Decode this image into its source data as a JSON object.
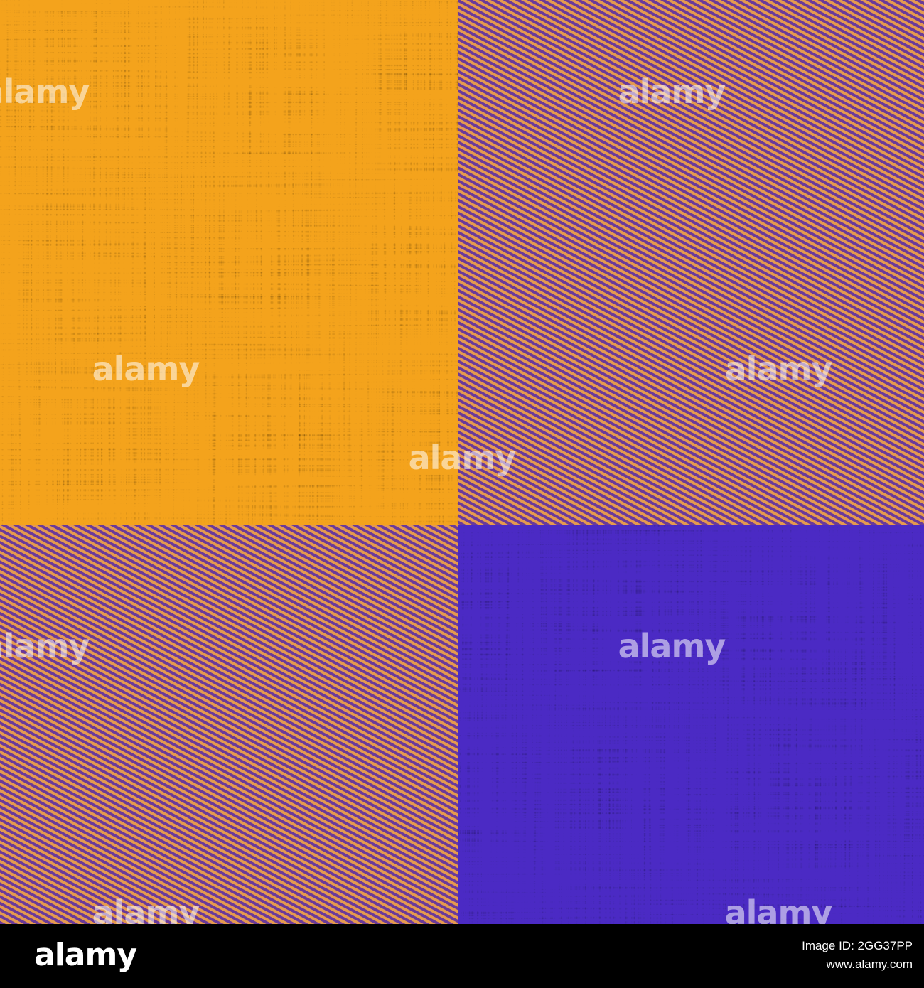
{
  "watermark": "alamy",
  "footer": {
    "logo": "alamy",
    "image_id": "Image ID: 2GG37PP",
    "url": "www.alamy.com"
  }
}
